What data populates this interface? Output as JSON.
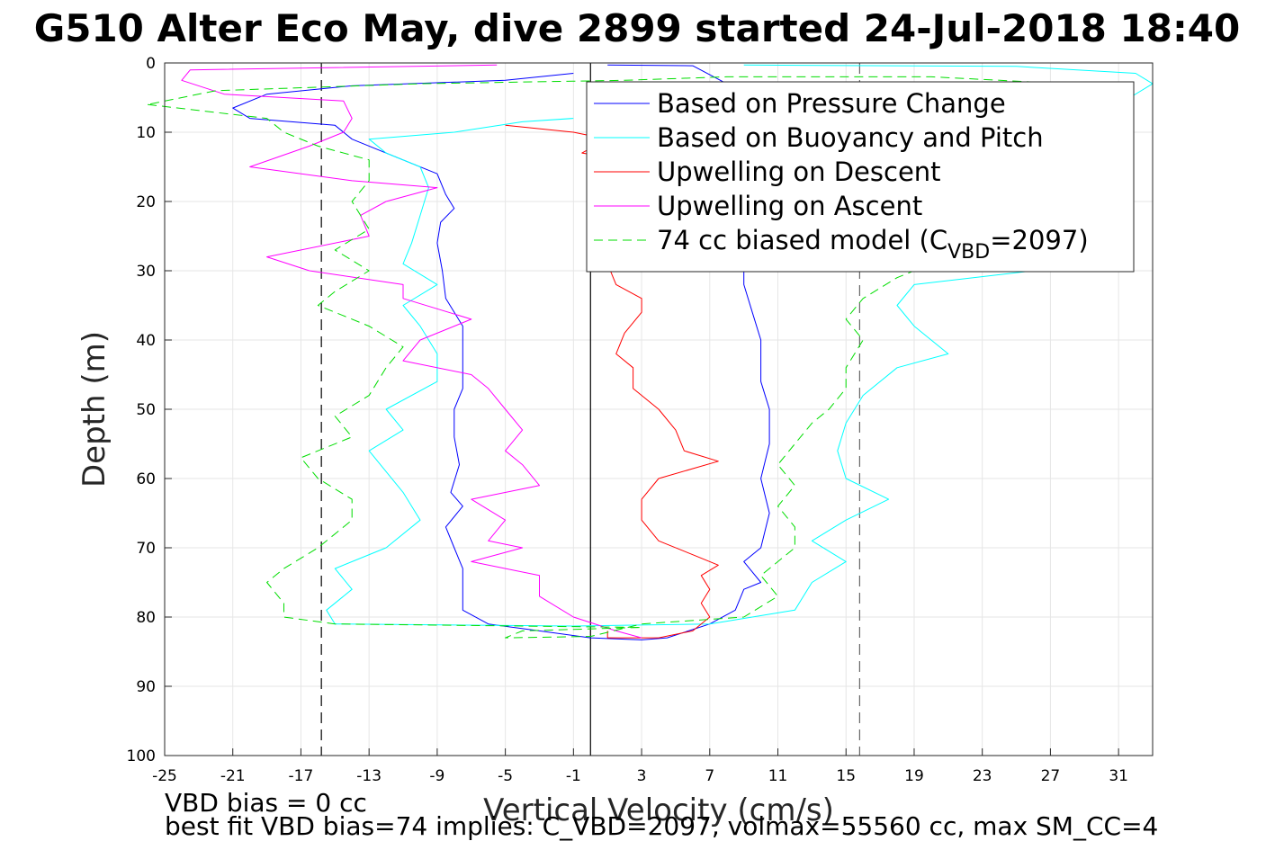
{
  "figure": {
    "title": "G510 Alter Eco May, dive 2899 started 24-Jul-2018 18:40",
    "notes": [
      "VBD bias = 0 cc",
      "best fit VBD bias=74 implies: C_VBD=2097, volmax=55560 cc, max SM_CC=4"
    ]
  },
  "chart_data": {
    "type": "line",
    "title": "G510 Alter Eco May, dive 2899 started 24-Jul-2018 18:40",
    "xlabel": "Vertical Velocity (cm/s)",
    "ylabel": "Depth (m)",
    "xlim": [
      -25,
      33
    ],
    "ylim": [
      0,
      100
    ],
    "y_reversed": true,
    "grid": true,
    "legend_position": "top-right",
    "xticks": [
      "-25",
      "-21",
      "-17",
      "-13",
      "-9",
      "-5",
      "-1",
      "3",
      "7",
      "11",
      "15",
      "19",
      "23",
      "27",
      "31"
    ],
    "yticks": [
      "0",
      "10",
      "20",
      "30",
      "40",
      "50",
      "60",
      "70",
      "80",
      "90",
      "100"
    ],
    "vertical_lines": [
      {
        "x": 0,
        "style": "solid",
        "color": "#000000"
      },
      {
        "x": -15.8,
        "style": "dashed",
        "color": "#000000"
      },
      {
        "x": 15.8,
        "style": "dashed",
        "color": "#666666"
      }
    ],
    "series": [
      {
        "name": "Based on Pressure Change",
        "color": "#0000ff",
        "style": "solid",
        "points": [
          [
            -1,
            1.5
          ],
          [
            -5,
            2.5
          ],
          [
            -14,
            3.3
          ],
          [
            -19,
            4.5
          ],
          [
            -21,
            6.5
          ],
          [
            -20,
            8
          ],
          [
            -15,
            9
          ],
          [
            -14,
            11
          ],
          [
            -11,
            14
          ],
          [
            -9,
            16
          ],
          [
            -8.5,
            19
          ],
          [
            -8,
            21
          ],
          [
            -8.8,
            23
          ],
          [
            -9,
            26
          ],
          [
            -8.7,
            30
          ],
          [
            -8.5,
            34
          ],
          [
            -7.5,
            38
          ],
          [
            -7.5,
            43
          ],
          [
            -7.5,
            47
          ],
          [
            -8,
            50
          ],
          [
            -8,
            54
          ],
          [
            -7.7,
            58
          ],
          [
            -8.2,
            62
          ],
          [
            -7.5,
            64
          ],
          [
            -8.5,
            67
          ],
          [
            -8,
            70
          ],
          [
            -7.5,
            73
          ],
          [
            -7.5,
            76
          ],
          [
            -7.5,
            79
          ],
          [
            -6,
            81
          ],
          [
            -3,
            82
          ],
          [
            0,
            83
          ],
          [
            3,
            83.3
          ],
          [
            4.5,
            83
          ],
          [
            7,
            81
          ],
          [
            8.5,
            79
          ],
          [
            9,
            76
          ],
          [
            10,
            75
          ],
          [
            9,
            72
          ],
          [
            10,
            70
          ],
          [
            10.5,
            65
          ],
          [
            10,
            60
          ],
          [
            10.5,
            55
          ],
          [
            10.5,
            50
          ],
          [
            10,
            46
          ],
          [
            10,
            40
          ],
          [
            9.5,
            36
          ],
          [
            9,
            32
          ],
          [
            9,
            30
          ],
          [
            8.5,
            20
          ],
          [
            8.5,
            10
          ],
          [
            8,
            3
          ],
          [
            6,
            0.4
          ],
          [
            1,
            0.3
          ]
        ]
      },
      {
        "name": "Based on Buoyancy and Pitch",
        "color": "#00ffff",
        "style": "solid",
        "points": [
          [
            -1,
            8
          ],
          [
            -4,
            8.5
          ],
          [
            -8,
            10
          ],
          [
            -13,
            11
          ],
          [
            -12,
            13
          ],
          [
            -10,
            15
          ],
          [
            -9.5,
            18
          ],
          [
            -10,
            22
          ],
          [
            -10.5,
            26
          ],
          [
            -11,
            29
          ],
          [
            -9,
            32
          ],
          [
            -11,
            35
          ],
          [
            -10,
            38
          ],
          [
            -9,
            42
          ],
          [
            -9,
            46
          ],
          [
            -12,
            50
          ],
          [
            -11,
            53
          ],
          [
            -13,
            56
          ],
          [
            -12,
            59
          ],
          [
            -11,
            62
          ],
          [
            -10,
            66
          ],
          [
            -12,
            70
          ],
          [
            -15,
            73
          ],
          [
            -14,
            76
          ],
          [
            -15.5,
            79
          ],
          [
            -15,
            81
          ],
          [
            -1,
            81.3
          ],
          [
            7,
            81
          ],
          [
            12,
            79
          ],
          [
            13,
            75
          ],
          [
            15,
            72
          ],
          [
            13,
            69
          ],
          [
            15,
            66
          ],
          [
            17.5,
            63
          ],
          [
            15,
            60
          ],
          [
            14.5,
            56
          ],
          [
            15,
            52
          ],
          [
            16,
            48
          ],
          [
            18,
            44
          ],
          [
            21,
            42
          ],
          [
            19,
            38
          ],
          [
            18,
            35
          ],
          [
            19,
            32
          ],
          [
            26,
            30
          ],
          [
            28,
            27
          ],
          [
            29,
            24
          ],
          [
            29,
            20
          ],
          [
            30,
            15
          ],
          [
            31,
            10
          ],
          [
            31,
            6
          ],
          [
            33,
            3
          ],
          [
            32,
            1.5
          ],
          [
            25,
            0.5
          ],
          [
            9,
            0.3
          ]
        ]
      },
      {
        "name": "Upwelling on Descent",
        "color": "#ff0000",
        "style": "solid",
        "points": [
          [
            -5,
            9
          ],
          [
            -1,
            10
          ],
          [
            1,
            11
          ],
          [
            -0.5,
            13
          ],
          [
            2,
            14
          ],
          [
            1.5,
            17
          ],
          [
            2,
            21
          ],
          [
            1.5,
            25
          ],
          [
            1,
            29
          ],
          [
            1.5,
            32
          ],
          [
            3,
            34
          ],
          [
            3,
            36
          ],
          [
            2,
            39
          ],
          [
            1.5,
            42
          ],
          [
            2.5,
            44
          ],
          [
            2.5,
            47
          ],
          [
            4,
            50
          ],
          [
            5,
            53
          ],
          [
            5.5,
            56
          ],
          [
            7.5,
            57.5
          ],
          [
            4,
            60
          ],
          [
            3,
            63
          ],
          [
            3,
            66
          ],
          [
            4,
            69
          ],
          [
            6,
            71
          ],
          [
            7.5,
            72.5
          ],
          [
            6.5,
            74
          ],
          [
            7,
            76
          ],
          [
            6.5,
            78
          ],
          [
            7,
            80
          ],
          [
            6,
            82
          ],
          [
            4,
            83
          ],
          [
            1,
            83
          ],
          [
            1,
            82
          ]
        ]
      },
      {
        "name": "Upwelling on Ascent",
        "color": "#ff00ff",
        "style": "solid",
        "points": [
          [
            -5.5,
            0.3
          ],
          [
            -23.5,
            1
          ],
          [
            -24,
            2.5
          ],
          [
            -21.5,
            4.5
          ],
          [
            -18,
            5
          ],
          [
            -14.5,
            5.5
          ],
          [
            -14,
            8
          ],
          [
            -14.5,
            10
          ],
          [
            -16.5,
            12
          ],
          [
            -20,
            15
          ],
          [
            -14,
            17
          ],
          [
            -9,
            18
          ],
          [
            -12,
            20
          ],
          [
            -13.5,
            22
          ],
          [
            -13,
            25
          ],
          [
            -19,
            28
          ],
          [
            -16.5,
            30
          ],
          [
            -11,
            32
          ],
          [
            -11,
            34
          ],
          [
            -7,
            37
          ],
          [
            -10,
            40
          ],
          [
            -11,
            43
          ],
          [
            -7,
            45
          ],
          [
            -6,
            47
          ],
          [
            -5,
            50
          ],
          [
            -4,
            53
          ],
          [
            -5,
            56
          ],
          [
            -4,
            58
          ],
          [
            -3,
            61
          ],
          [
            -7,
            63
          ],
          [
            -5,
            66
          ],
          [
            -6,
            69
          ],
          [
            -4,
            70
          ],
          [
            -7,
            72
          ],
          [
            -3,
            74
          ],
          [
            -3,
            77
          ],
          [
            -1,
            80
          ],
          [
            1.5,
            82
          ],
          [
            3,
            83
          ]
        ]
      },
      {
        "name": "74 cc biased model (C_VBD=2097)",
        "color": "#00dd00",
        "style": "dashed",
        "points": [
          [
            -26,
            6
          ],
          [
            -19,
            8
          ],
          [
            -18,
            10
          ],
          [
            -16,
            12
          ],
          [
            -13,
            14
          ],
          [
            -13,
            17
          ],
          [
            -14,
            20
          ],
          [
            -13,
            24
          ],
          [
            -15,
            27
          ],
          [
            -13,
            30
          ],
          [
            -15,
            33
          ],
          [
            -16,
            35
          ],
          [
            -13,
            38
          ],
          [
            -11,
            41
          ],
          [
            -12,
            44
          ],
          [
            -13,
            48
          ],
          [
            -15,
            51
          ],
          [
            -14,
            54
          ],
          [
            -17,
            57
          ],
          [
            -16,
            60
          ],
          [
            -14,
            63
          ],
          [
            -14,
            66
          ],
          [
            -16,
            70
          ],
          [
            -18,
            73
          ],
          [
            -19,
            75
          ],
          [
            -18,
            78
          ],
          [
            -18,
            80
          ],
          [
            -15,
            81
          ],
          [
            3,
            81.5
          ],
          [
            -4,
            82
          ],
          [
            -5,
            83
          ],
          [
            0,
            82.8
          ],
          [
            3,
            81
          ],
          [
            9,
            80
          ],
          [
            11,
            77
          ],
          [
            10,
            74
          ],
          [
            11,
            72
          ],
          [
            12,
            70
          ],
          [
            12,
            67
          ],
          [
            11,
            64
          ],
          [
            12,
            61
          ],
          [
            11,
            58
          ],
          [
            12,
            55
          ],
          [
            13,
            52
          ],
          [
            14,
            50
          ],
          [
            15,
            47
          ],
          [
            15,
            44
          ],
          [
            16,
            40
          ],
          [
            15,
            37
          ],
          [
            16,
            34
          ],
          [
            18,
            31
          ],
          [
            21,
            28
          ],
          [
            25,
            24
          ],
          [
            27,
            21
          ],
          [
            29,
            18
          ],
          [
            29,
            14
          ],
          [
            30,
            10
          ],
          [
            30,
            5
          ],
          [
            28,
            3
          ],
          [
            20,
            2
          ],
          [
            8,
            2
          ],
          [
            2,
            2.5
          ],
          [
            -10,
            3
          ],
          [
            -22,
            4
          ],
          [
            -26,
            6
          ]
        ]
      }
    ]
  },
  "legend": {
    "items": [
      {
        "label": "Based on Pressure Change",
        "color": "#0000ff",
        "dash": false
      },
      {
        "label": "Based on Buoyancy and Pitch",
        "color": "#00ffff",
        "dash": false
      },
      {
        "label": "Upwelling on Descent",
        "color": "#ff0000",
        "dash": false
      },
      {
        "label": "Upwelling on Ascent",
        "color": "#ff00ff",
        "dash": false
      },
      {
        "label_prefix": "74 cc biased model (C",
        "label_sub": "VBD",
        "label_suffix": "=2097)",
        "color": "#00dd00",
        "dash": true
      }
    ]
  }
}
